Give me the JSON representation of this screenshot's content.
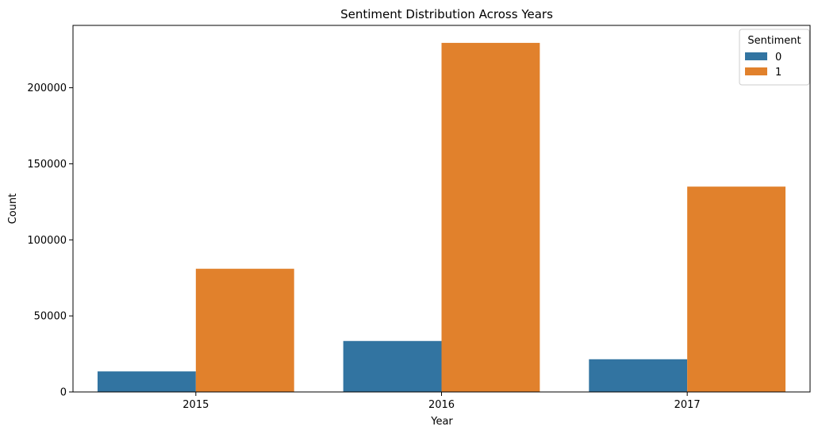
{
  "chart_data": {
    "type": "bar",
    "title": "Sentiment Distribution Across Years",
    "xlabel": "Year",
    "ylabel": "Count",
    "categories": [
      "2015",
      "2016",
      "2017"
    ],
    "series": [
      {
        "name": "0",
        "color": "#3274a1",
        "values": [
          13500,
          33500,
          21500
        ]
      },
      {
        "name": "1",
        "color": "#e1812c",
        "values": [
          81000,
          229500,
          135000
        ]
      }
    ],
    "ylim": [
      0,
      241000
    ],
    "yticks": [
      0,
      50000,
      100000,
      150000,
      200000
    ],
    "ytick_labels": [
      "0",
      "50000",
      "100000",
      "150000",
      "200000"
    ],
    "legend": {
      "title": "Sentiment",
      "position": "top-right"
    },
    "grid": false
  }
}
